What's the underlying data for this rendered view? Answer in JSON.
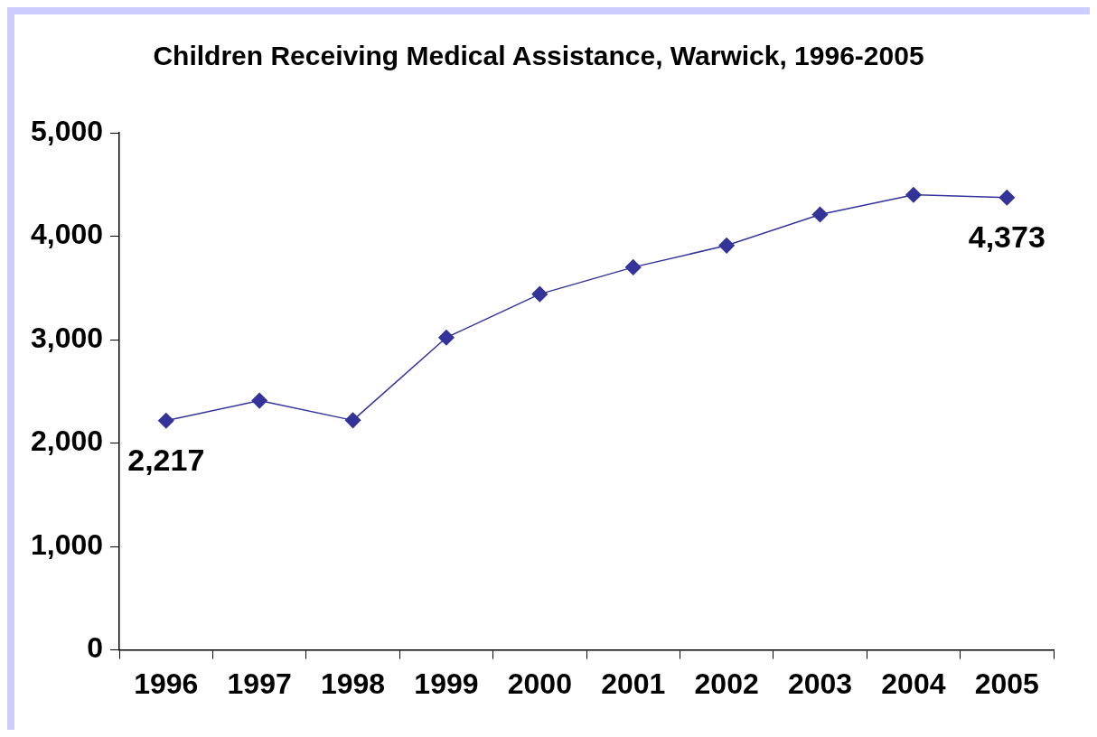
{
  "chart_data": {
    "type": "line",
    "title": "Children Receiving Medical Assistance, Warwick, 1996-2005",
    "categories": [
      "1996",
      "1997",
      "1998",
      "1999",
      "2000",
      "2001",
      "2002",
      "2003",
      "2004",
      "2005"
    ],
    "series": [
      {
        "color": "#333399",
        "values": [
          2217,
          2410,
          2220,
          3020,
          3440,
          3700,
          3910,
          4210,
          4400,
          4373
        ],
        "value_labels": [
          "2,217",
          null,
          null,
          null,
          null,
          null,
          null,
          null,
          null,
          "4,373"
        ]
      }
    ],
    "ylim": [
      0,
      5000
    ],
    "yticks": [
      {
        "value": 0,
        "label": "0"
      },
      {
        "value": 1000,
        "label": "1,000"
      },
      {
        "value": 2000,
        "label": "2,000"
      },
      {
        "value": 3000,
        "label": "3,000"
      },
      {
        "value": 4000,
        "label": "4,000"
      },
      {
        "value": 5000,
        "label": "5,000"
      }
    ],
    "marker": "diamond",
    "line_style": "solid",
    "grid": false,
    "legend": false
  }
}
